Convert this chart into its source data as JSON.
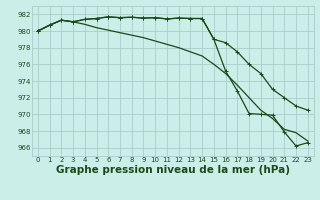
{
  "title": "Graphe pression niveau de la mer (hPa)",
  "background_color": "#cceee8",
  "grid_color": "#aacccc",
  "line_color": "#1a4a1a",
  "xlim": [
    -0.5,
    23.5
  ],
  "ylim": [
    965,
    983
  ],
  "yticks": [
    966,
    968,
    970,
    972,
    974,
    976,
    978,
    980,
    982
  ],
  "xticks": [
    0,
    1,
    2,
    3,
    4,
    5,
    6,
    7,
    8,
    9,
    10,
    11,
    12,
    13,
    14,
    15,
    16,
    17,
    18,
    19,
    20,
    21,
    22,
    23
  ],
  "series1": [
    980.0,
    980.7,
    981.3,
    981.1,
    981.4,
    981.5,
    981.7,
    981.6,
    981.65,
    981.55,
    981.6,
    981.45,
    981.55,
    981.5,
    981.5,
    979.0,
    978.6,
    977.5,
    976.0,
    974.9,
    973.0,
    972.0,
    971.0,
    970.5
  ],
  "series2": [
    980.0,
    980.7,
    981.3,
    981.1,
    981.4,
    981.5,
    981.7,
    981.6,
    981.65,
    981.55,
    981.6,
    981.45,
    981.55,
    981.5,
    981.5,
    979.0,
    975.2,
    972.8,
    970.1,
    970.0,
    969.9,
    967.9,
    966.2,
    966.6
  ],
  "series3": [
    980.0,
    980.7,
    981.3,
    981.1,
    980.8,
    980.4,
    980.1,
    979.8,
    979.5,
    979.2,
    978.8,
    978.4,
    978.0,
    977.5,
    977.0,
    976.0,
    974.9,
    973.5,
    972.0,
    970.5,
    969.5,
    968.2,
    967.8,
    966.8
  ],
  "marker": "+",
  "markersize": 3,
  "linewidth": 0.9,
  "title_fontsize": 7.5,
  "tick_fontsize": 5.0
}
